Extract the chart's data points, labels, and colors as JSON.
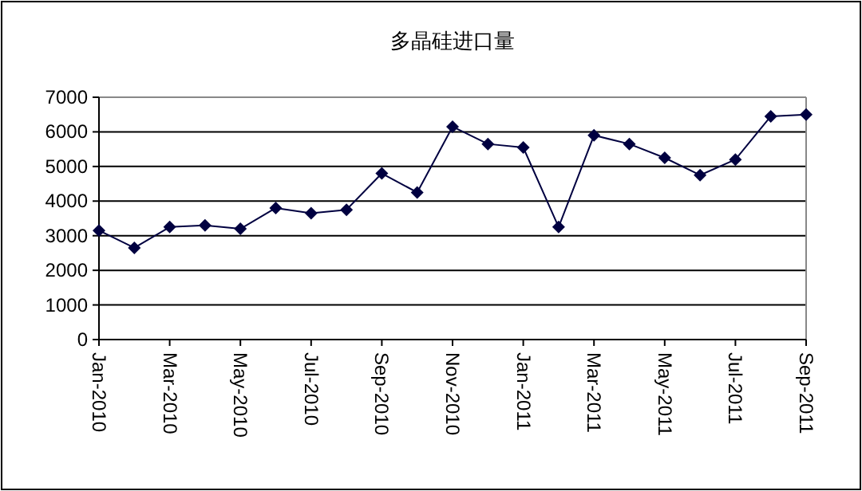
{
  "chart_data": {
    "type": "line",
    "title": "多晶硅进口量",
    "categories": [
      "Jan-2010",
      null,
      "Mar-2010",
      null,
      "May-2010",
      null,
      "Jul-2010",
      null,
      "Sep-2010",
      null,
      "Nov-2010",
      null,
      "Jan-2011",
      null,
      "Mar-2011",
      null,
      "May-2011",
      null,
      "Jul-2011",
      null,
      "Sep-2011"
    ],
    "series": [
      {
        "color": "#000040",
        "values": [
          3150,
          2650,
          3250,
          3300,
          3200,
          3800,
          3650,
          3750,
          4800,
          4250,
          6150,
          5650,
          5550,
          3250,
          5900,
          5650,
          5250,
          4750,
          5200,
          6450,
          6500
        ]
      }
    ],
    "ylim": [
      0,
      7000
    ],
    "yticks": [
      0,
      1000,
      2000,
      3000,
      4000,
      5000,
      6000,
      7000
    ],
    "grid": "y",
    "marker": "diamond",
    "line_style": "solid"
  }
}
